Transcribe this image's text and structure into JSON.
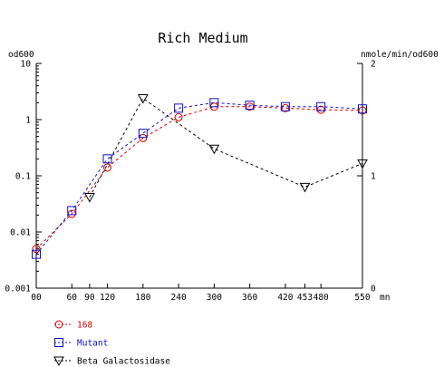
{
  "chart_data": {
    "type": "line",
    "title": "Rich Medium",
    "xunit": "mn",
    "y_left_label": "od600",
    "y_right_label": "nmole/min/od600",
    "x_range": [
      0,
      550
    ],
    "x_ticks": [
      0,
      60,
      90,
      120,
      180,
      240,
      300,
      360,
      420,
      453,
      480,
      550
    ],
    "x_tick_labels": [
      "00",
      "60",
      "90",
      "120",
      "180",
      "240",
      "300",
      "360",
      "420",
      "453",
      "480",
      "550"
    ],
    "y_left_scale": "log",
    "y_left_range": [
      0.001,
      10
    ],
    "y_left_ticks": [
      0.001,
      0.01,
      0.1,
      1,
      10
    ],
    "y_left_tick_labels": [
      "0.001",
      "0.01",
      "0.1",
      "1",
      "10"
    ],
    "y_right_scale": "linear",
    "y_right_range": [
      0,
      2
    ],
    "y_right_ticks": [
      0,
      1,
      2
    ],
    "y_right_tick_labels": [
      "0",
      "1",
      "2"
    ],
    "grid": false,
    "legend_position": "bottom-left",
    "series": [
      {
        "name": "168",
        "axis": "left",
        "marker": "circle",
        "color": "#d40000",
        "x": [
          0,
          60,
          120,
          180,
          240,
          300,
          360,
          420,
          480,
          550
        ],
        "y": [
          0.005,
          0.021,
          0.14,
          0.47,
          1.1,
          1.7,
          1.7,
          1.6,
          1.5,
          1.45
        ]
      },
      {
        "name": "Mutant",
        "axis": "left",
        "marker": "square",
        "color": "#1010c8",
        "x": [
          0,
          60,
          120,
          180,
          240,
          300,
          360,
          420,
          480,
          550
        ],
        "y": [
          0.004,
          0.024,
          0.2,
          0.57,
          1.6,
          2.0,
          1.8,
          1.7,
          1.7,
          1.55
        ]
      },
      {
        "name": "Beta Galactosidase",
        "axis": "right",
        "marker": "triangle-down",
        "color": "#000000",
        "x": [
          90,
          180,
          300,
          453,
          550
        ],
        "y": [
          0.81,
          1.69,
          1.24,
          0.9,
          1.11
        ]
      }
    ]
  }
}
